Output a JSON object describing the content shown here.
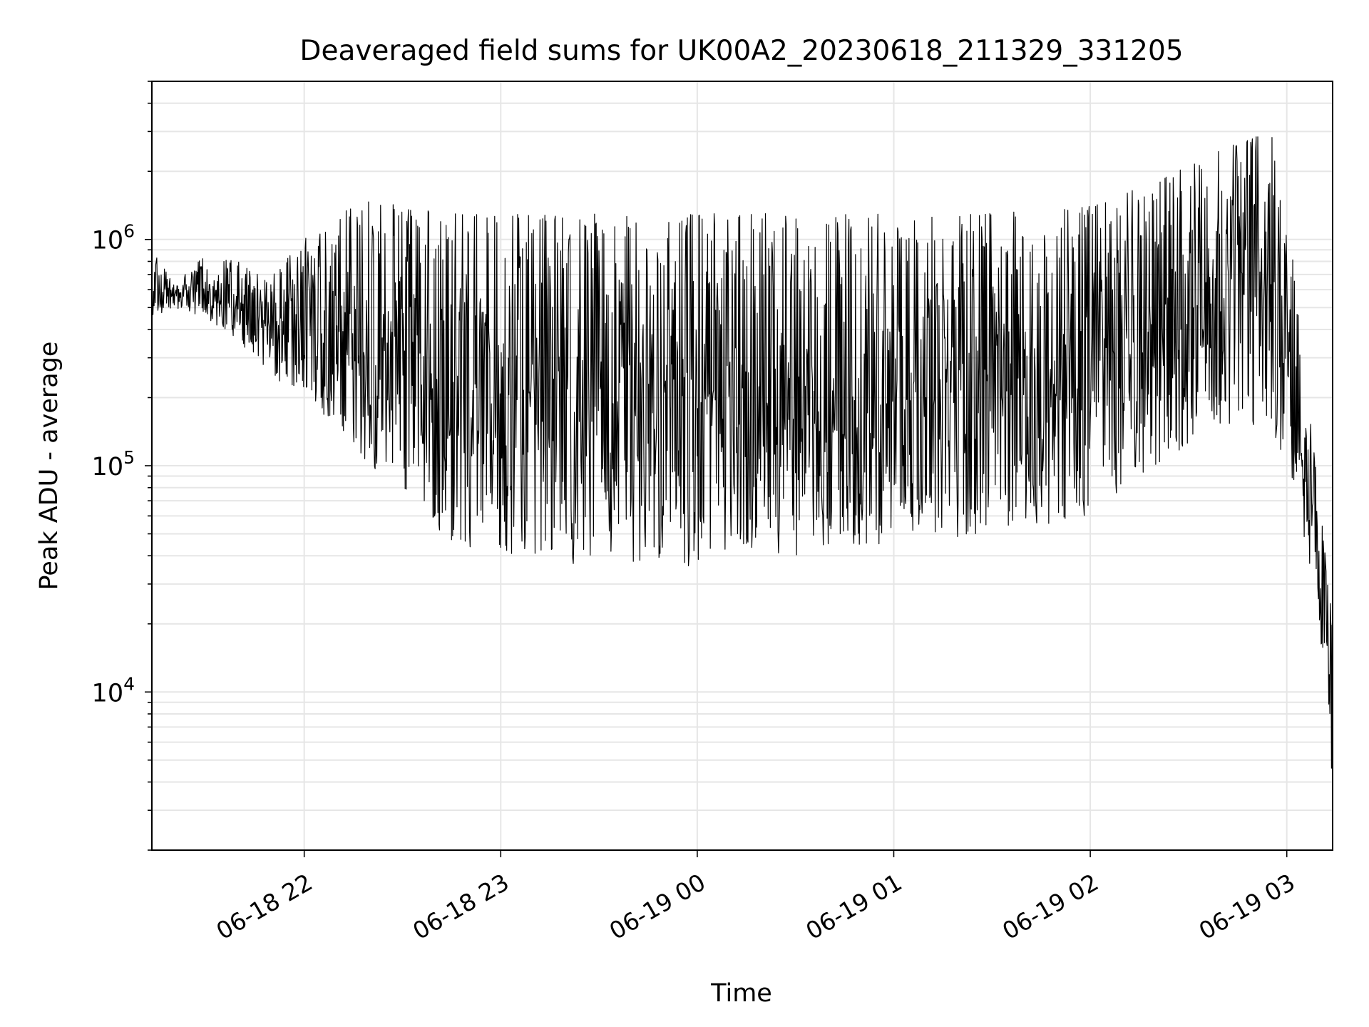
{
  "chart_data": {
    "type": "line",
    "title": "Deaveraged field sums for UK00A2_20230618_211329_331205",
    "xlabel": "Time",
    "ylabel": "Peak ADU - average",
    "yscale": "log",
    "ylim": [
      2000,
      5000000
    ],
    "xlim": [
      "2023-06-18 21:13:29",
      "2023-06-19 03:14:00"
    ],
    "grid": true,
    "line_color": "#000000",
    "grid_color": "#e6e6e6",
    "x_ticks": [
      {
        "x": "2023-06-18 22:00",
        "label": "06-18 22"
      },
      {
        "x": "2023-06-18 23:00",
        "label": "06-18 23"
      },
      {
        "x": "2023-06-19 00:00",
        "label": "06-19 00"
      },
      {
        "x": "2023-06-19 01:00",
        "label": "06-19 01"
      },
      {
        "x": "2023-06-19 02:00",
        "label": "06-19 02"
      },
      {
        "x": "2023-06-19 03:00",
        "label": "06-19 03"
      }
    ],
    "y_ticks": [
      {
        "value": 10000,
        "base": "10",
        "exp": "4"
      },
      {
        "value": 100000,
        "base": "10",
        "exp": "5"
      },
      {
        "value": 1000000,
        "base": "10",
        "exp": "6"
      }
    ],
    "series_x_start": "2023-06-18 21:13:29",
    "series_x_step_seconds": 10,
    "envelope": {
      "times": [
        "2023-06-18 21:13:29",
        "2023-06-18 21:20",
        "2023-06-18 21:30",
        "2023-06-18 21:40",
        "2023-06-18 21:50",
        "2023-06-18 22:00",
        "2023-06-18 22:10",
        "2023-06-18 22:20",
        "2023-06-18 22:30",
        "2023-06-18 22:45",
        "2023-06-18 23:00",
        "2023-06-18 23:30",
        "2023-06-19 00:00",
        "2023-06-19 00:30",
        "2023-06-19 01:00",
        "2023-06-19 01:30",
        "2023-06-19 02:00",
        "2023-06-19 02:20",
        "2023-06-19 02:40",
        "2023-06-19 02:55",
        "2023-06-19 03:00",
        "2023-06-19 03:05",
        "2023-06-19 03:10",
        "2023-06-19 03:14"
      ],
      "high": [
        900000,
        650000,
        850000,
        800000,
        700000,
        1000000,
        1300000,
        1500000,
        1400000,
        1300000,
        1300000,
        1300000,
        1300000,
        1300000,
        1300000,
        1300000,
        1400000,
        1800000,
        2500000,
        3000000,
        1600000,
        300000,
        70000,
        20000
      ],
      "low": [
        450000,
        500000,
        450000,
        350000,
        250000,
        200000,
        150000,
        100000,
        80000,
        45000,
        40000,
        35000,
        35000,
        40000,
        45000,
        50000,
        60000,
        100000,
        150000,
        150000,
        100000,
        50000,
        20000,
        3000
      ]
    }
  }
}
